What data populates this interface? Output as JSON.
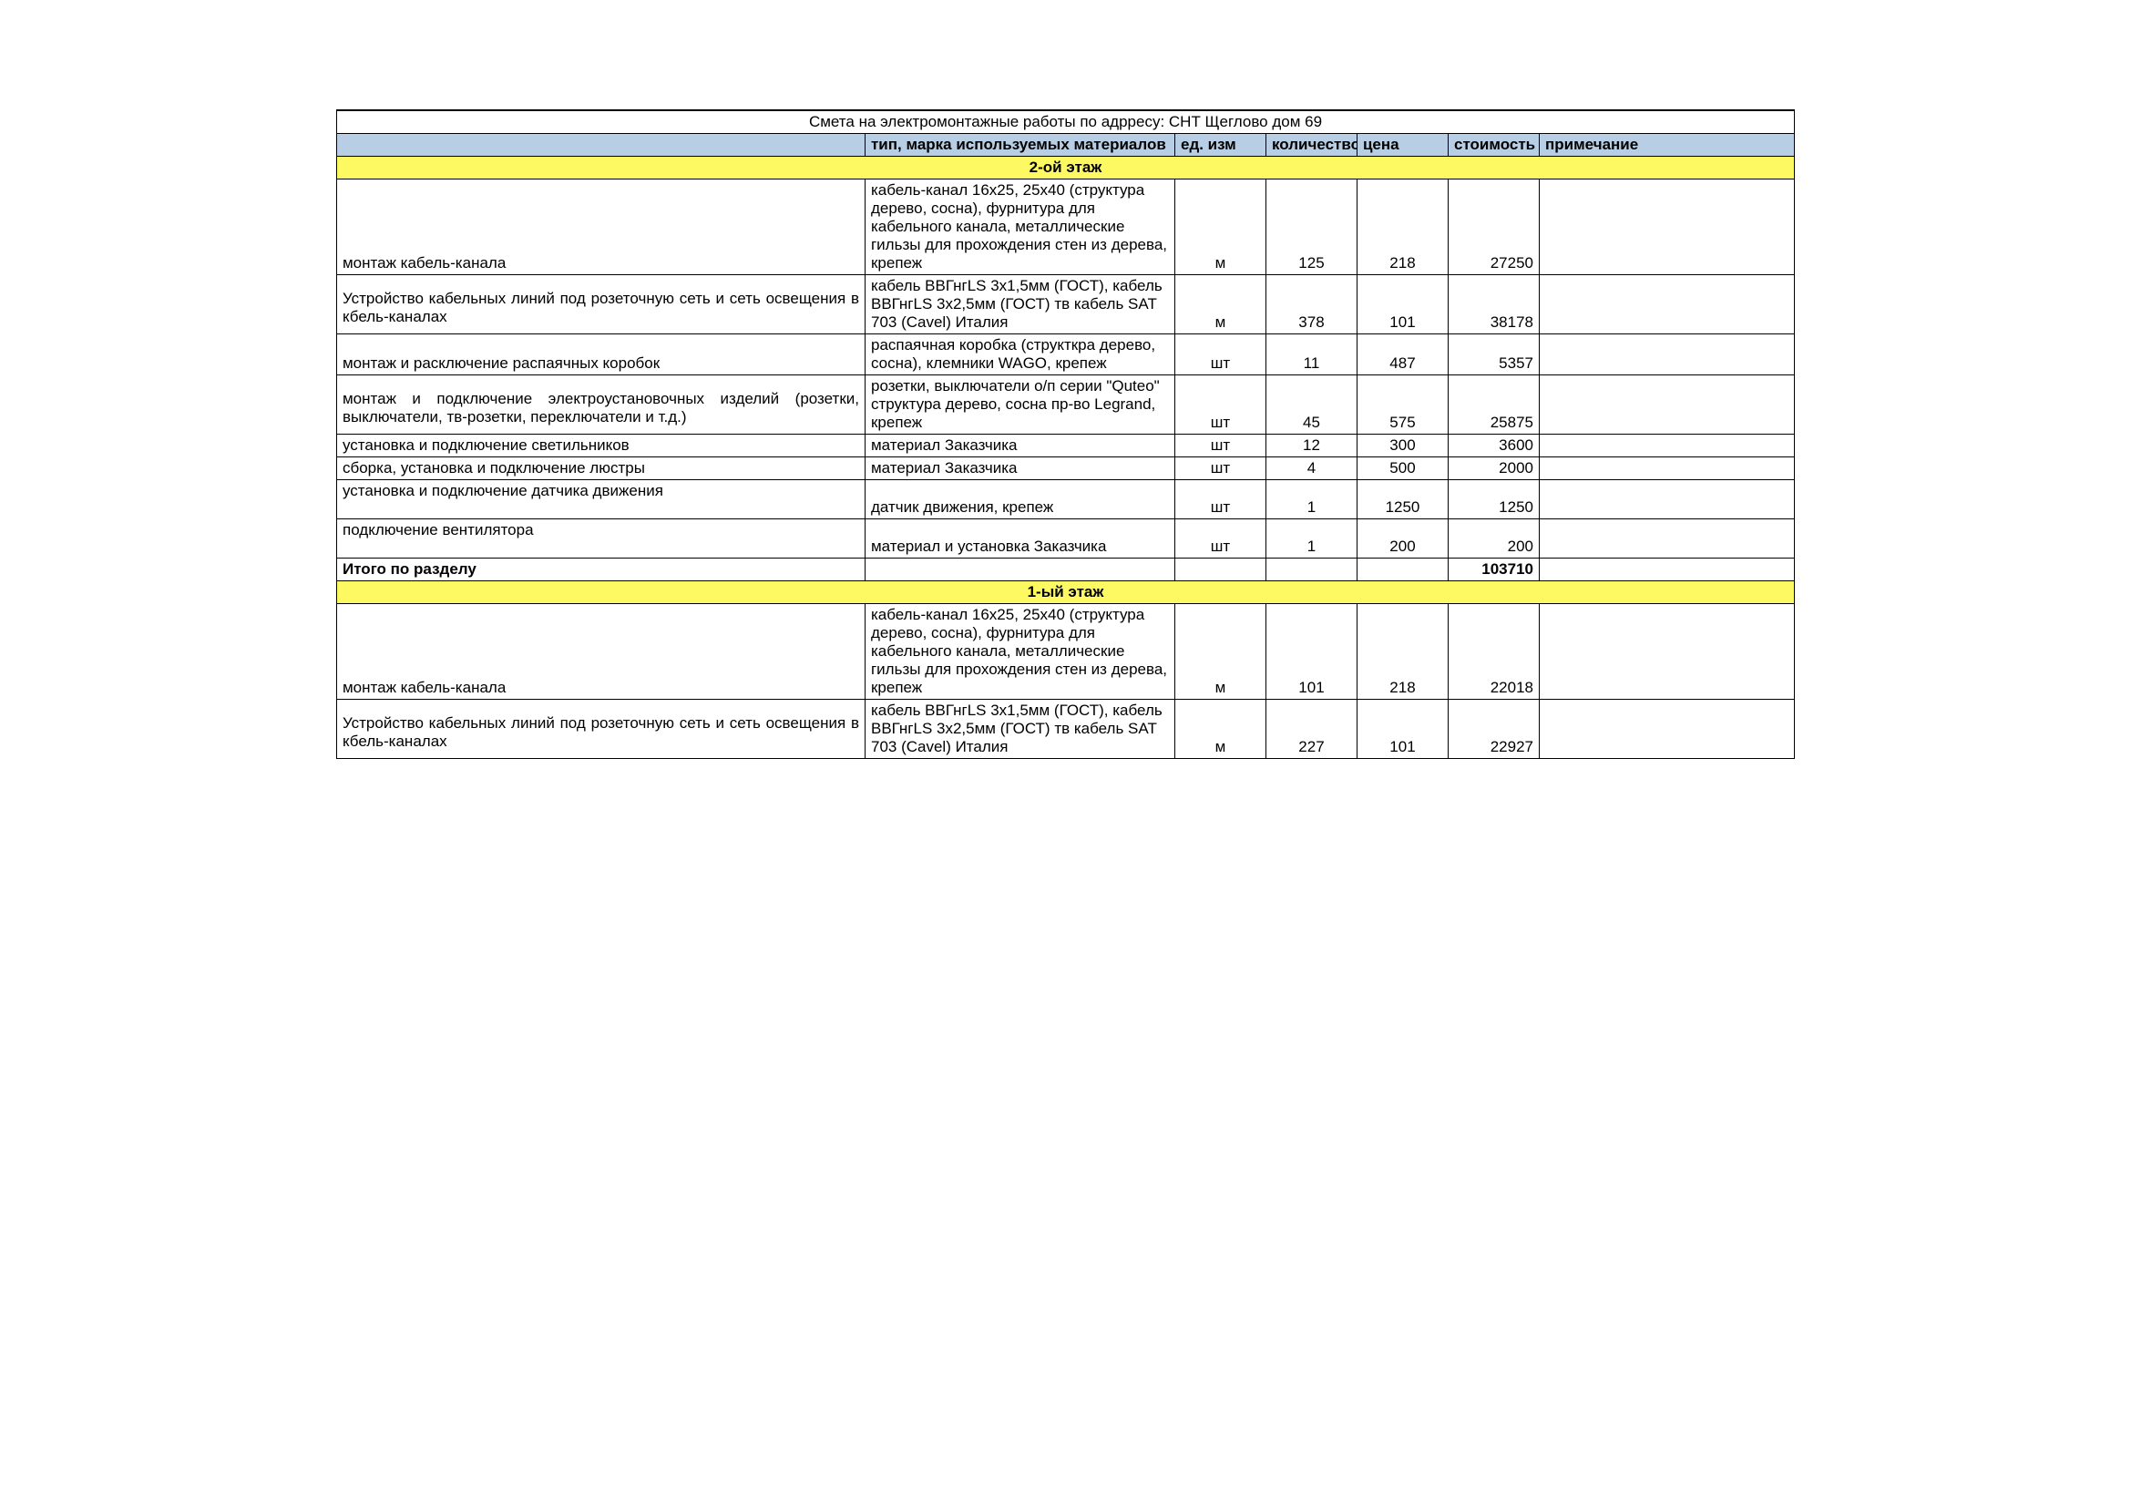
{
  "title": "Смета на электромонтажные работы по адрресу: СНТ Щеглово дом 69",
  "headers": {
    "work": "",
    "material": "тип, марка используемых материалов",
    "unit": "ед. изм",
    "qty": "количество",
    "price": "цена",
    "cost": "стоимость",
    "note": "примечание"
  },
  "sections": [
    {
      "name": "2-ой этаж",
      "rows": [
        {
          "work": "монтаж кабель-канала",
          "work_justify": false,
          "material": "кабель-канал 16х25, 25х40 (структура дерево, сосна), фурнитура для кабельного канала, металлические гильзы для прохождения стен из дерева, крепеж",
          "unit": "м",
          "qty": "125",
          "price": "218",
          "cost": "27250",
          "note": ""
        },
        {
          "work": "Устройство кабельных линий под розеточную сеть и сеть освещения в кбель-каналах",
          "work_justify": true,
          "pad_top": true,
          "material": "кабель ВВГнгLS 3х1,5мм (ГОСТ), кабель ВВГнгLS 3х2,5мм (ГОСТ) тв кабель SAT 703 (Cavel) Италия",
          "unit": "м",
          "qty": "378",
          "price": "101",
          "cost": "38178",
          "note": ""
        },
        {
          "work": "монтаж и расключение распаячных коробок",
          "work_justify": false,
          "material": "распаячная коробка (структкра дерево, сосна), клемники WAGO, крепеж",
          "unit": "шт",
          "qty": "11",
          "price": "487",
          "cost": "5357",
          "note": ""
        },
        {
          "work": "монтаж и подключение электроустановочных изделий (розетки, выключатели, тв-розетки, переключатели и т.д.)",
          "work_justify": true,
          "pad_top": true,
          "material": "розетки, выключатели о/п серии \"Quteo\" структура дерево, сосна пр-во Legrand, крепеж",
          "unit": "шт",
          "qty": "45",
          "price": "575",
          "cost": "25875",
          "note": ""
        },
        {
          "work": "установка и подключение светильников",
          "work_justify": false,
          "material": "материал Заказчика",
          "unit": "шт",
          "qty": "12",
          "price": "300",
          "cost": "3600",
          "note": ""
        },
        {
          "work": "сборка, установка и подключение люстры",
          "work_justify": false,
          "material": "материал Заказчика",
          "unit": "шт",
          "qty": "4",
          "price": "500",
          "cost": "2000",
          "note": ""
        },
        {
          "work": "установка и подключение датчика движения",
          "work_justify": false,
          "tall": true,
          "material": "датчик движения, крепеж",
          "unit": "шт",
          "qty": "1",
          "price": "1250",
          "cost": "1250",
          "note": ""
        },
        {
          "work": "подключение вентилятора",
          "work_justify": false,
          "tall": true,
          "material": "материал и установка Заказчика",
          "unit": "шт",
          "qty": "1",
          "price": "200",
          "cost": "200",
          "note": ""
        }
      ],
      "subtotal_label": "Итого по разделу",
      "subtotal": "103710"
    },
    {
      "name": "1-ый этаж",
      "rows": [
        {
          "work": "монтаж кабель-канала",
          "work_justify": false,
          "material": "кабель-канал 16х25, 25х40 (структура дерево, сосна), фурнитура для кабельного канала, металлические гильзы для прохождения стен из дерева, крепеж",
          "unit": "м",
          "qty": "101",
          "price": "218",
          "cost": "22018",
          "note": ""
        },
        {
          "work": "Устройство кабельных линий под розеточную сеть и сеть освещения в кбель-каналах",
          "work_justify": true,
          "pad_top": true,
          "material": "кабель ВВГнгLS 3х1,5мм (ГОСТ), кабель ВВГнгLS 3х2,5мм (ГОСТ) тв кабель SAT 703 (Cavel) Италия",
          "unit": "м",
          "qty": "227",
          "price": "101",
          "cost": "22927",
          "note": ""
        }
      ]
    }
  ]
}
